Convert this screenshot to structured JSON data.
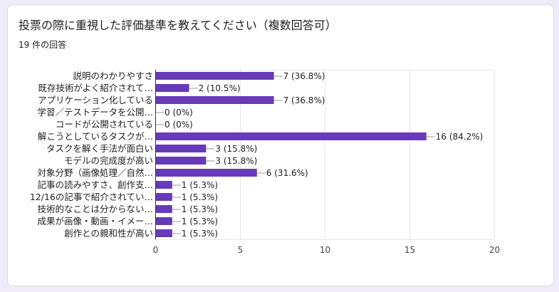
{
  "title": "投票の際に重視した評価基準を教えてください（複数回答可）",
  "response_count": "19 件の回答",
  "colors": {
    "bar": "#673ab7",
    "background": "#f0ebf8",
    "card": "#ffffff"
  },
  "chart_data": {
    "type": "bar",
    "orientation": "horizontal",
    "categories": [
      "説明のわかりやすさ",
      "既存技術がよく紹介されて…",
      "アプリケーション化している",
      "学習／テストデータを公開…",
      "コードが公開されている",
      "解こうとしているタスクが…",
      "タスクを解く手法が面白い",
      "モデルの完成度が高い",
      "対象分野（画像処理／自然…",
      "記事の読みやすさ、創作支…",
      "12/16の記事で紹介されてい…",
      "技術的なことは分からない…",
      "成果が画像・動画・イメー…",
      "創作との親和性が高い"
    ],
    "values": [
      7,
      2,
      7,
      0,
      0,
      16,
      3,
      3,
      6,
      1,
      1,
      1,
      1,
      1
    ],
    "value_labels": [
      "7 (36.8%)",
      "2 (10.5%)",
      "7 (36.8%)",
      "0 (0%)",
      "0 (0%)",
      "16 (84.2%)",
      "3 (15.8%)",
      "3 (15.8%)",
      "6 (31.6%)",
      "1 (5.3%)",
      "1 (5.3%)",
      "1 (5.3%)",
      "1 (5.3%)",
      "1 (5.3%)"
    ],
    "xlim": [
      0,
      20
    ],
    "xticks": [
      0,
      5,
      10,
      15,
      20
    ],
    "grid": true,
    "legend": "none"
  }
}
